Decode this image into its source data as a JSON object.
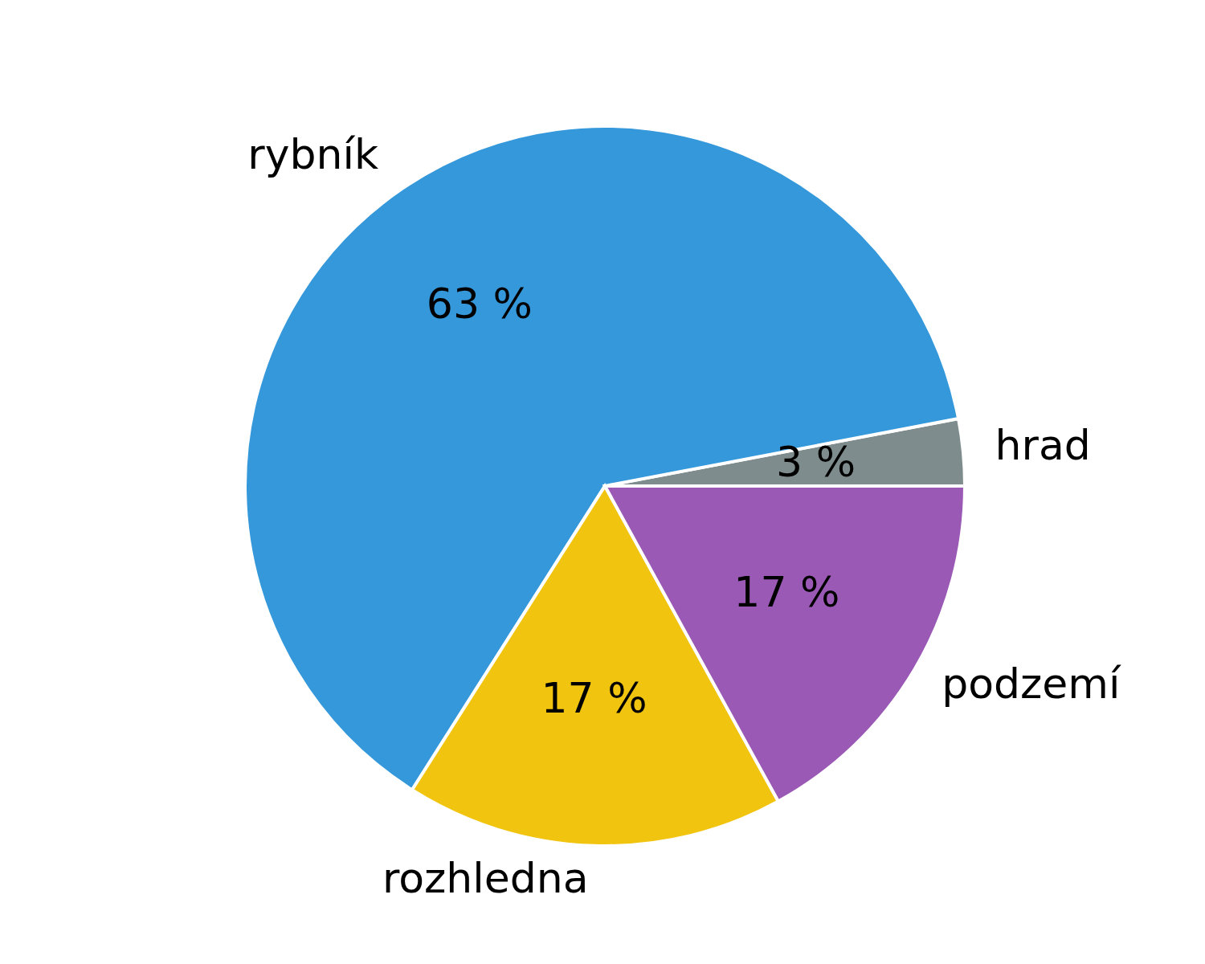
{
  "chart_data": {
    "type": "pie",
    "categories": [
      "hrad",
      "rybník",
      "rozhledna",
      "podzemí"
    ],
    "values": [
      3,
      63,
      17,
      17
    ],
    "colors": [
      "#7f8c8d",
      "#3498db",
      "#f1c40f",
      "#9b59b6"
    ],
    "value_labels": [
      "3 %",
      "63 %",
      "17 %",
      "17 %"
    ]
  }
}
